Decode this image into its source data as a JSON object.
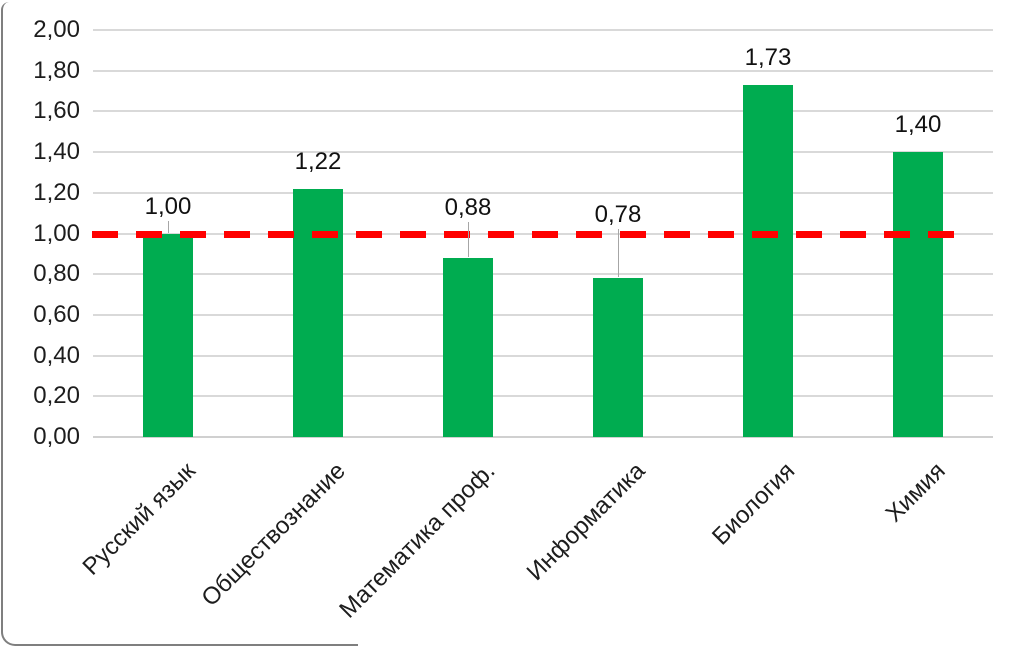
{
  "chart_data": {
    "type": "bar",
    "title": "",
    "categories": [
      "Русский язык",
      "Обществознание",
      "Математика проф.",
      "Информатика",
      "Биология",
      "Химия"
    ],
    "values": [
      1.0,
      1.22,
      0.88,
      0.78,
      1.73,
      1.4
    ],
    "value_labels": [
      "1,00",
      "1,22",
      "0,88",
      "0,78",
      "1,73",
      "1,40"
    ],
    "y_ticks": [
      {
        "value": 2.0,
        "label": "2,00"
      },
      {
        "value": 1.8,
        "label": "1,80"
      },
      {
        "value": 1.6,
        "label": "1,60"
      },
      {
        "value": 1.4,
        "label": "1,40"
      },
      {
        "value": 1.2,
        "label": "1,20"
      },
      {
        "value": 1.0,
        "label": "1,00"
      },
      {
        "value": 0.8,
        "label": "0,80"
      },
      {
        "value": 0.6,
        "label": "0,60"
      },
      {
        "value": 0.4,
        "label": "0,40"
      },
      {
        "value": 0.2,
        "label": "0,20"
      },
      {
        "value": 0.0,
        "label": "0,00"
      }
    ],
    "ylim": [
      0,
      2
    ],
    "xlabel": "",
    "ylabel": "",
    "grid": true,
    "legend": false,
    "reference_line": {
      "value": 1.0,
      "style": "dashed",
      "color": "#ff0000"
    },
    "colors": {
      "bar": "#00ac50",
      "gridline": "#d9d9d9",
      "axis_line": "#d0d0d0",
      "reference": "#ff0000",
      "text": "#1d1d1d",
      "leader_line": "#a6a6a6",
      "frame_border": "#7f7f7f"
    }
  }
}
